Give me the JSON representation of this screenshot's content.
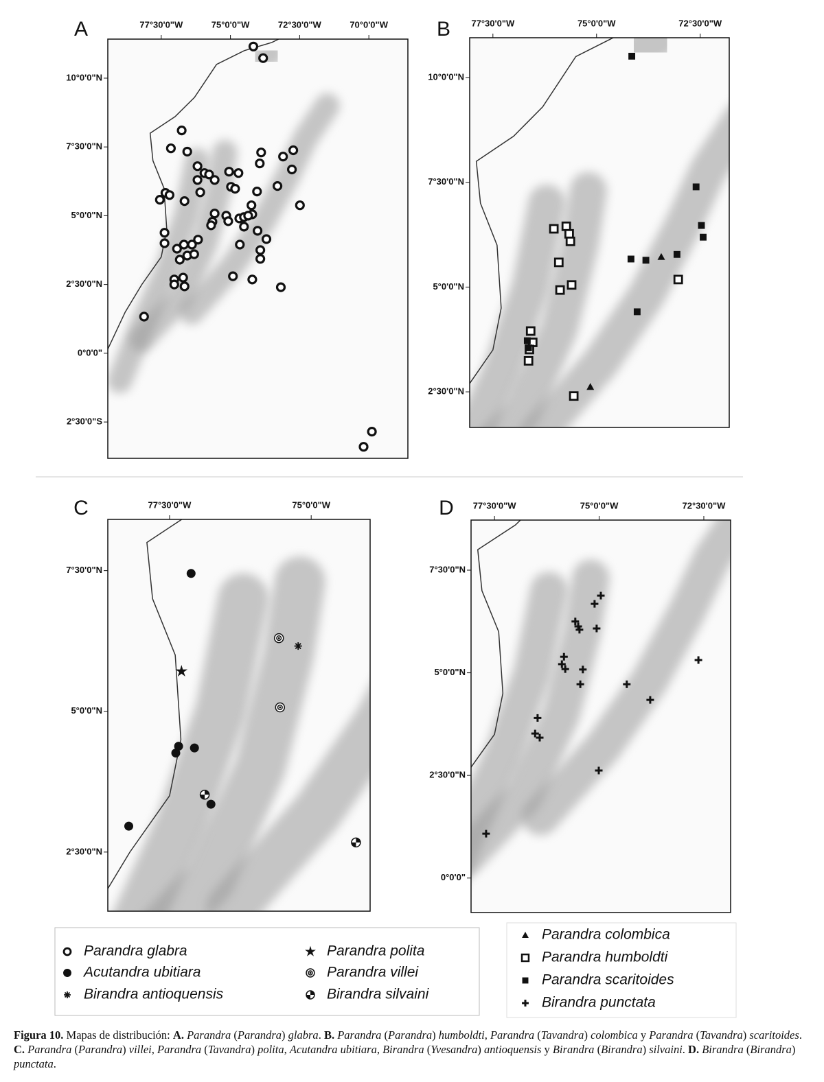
{
  "panels": [
    {
      "label": "A",
      "xlim": [
        -79.43,
        -68.59
      ],
      "ylim": [
        -3.82,
        11.42
      ],
      "xticks": [
        {
          "value": -77.5,
          "label": "77°30'0\"W"
        },
        {
          "value": -75,
          "label": "75°0'0\"W"
        },
        {
          "value": -72.5,
          "label": "72°30'0\"W"
        },
        {
          "value": -70,
          "label": "70°0'0\"W"
        }
      ],
      "yticks": [
        {
          "value": 10,
          "label": "10°0'0\"N"
        },
        {
          "value": 7.5,
          "label": "7°30'0\"N"
        },
        {
          "value": 5,
          "label": "5°0'0\"N"
        },
        {
          "value": 2.5,
          "label": "2°30'0\"N"
        },
        {
          "value": 0,
          "label": "0°0'0\""
        },
        {
          "value": -2.5,
          "label": "2°30'0\"S"
        }
      ]
    },
    {
      "label": "B",
      "xlim": [
        -78.06,
        -71.8
      ],
      "ylim": [
        1.65,
        10.95
      ],
      "xticks": [
        {
          "value": -77.5,
          "label": "77°30'0\"W"
        },
        {
          "value": -75,
          "label": "75°0'0\"W"
        },
        {
          "value": -72.5,
          "label": "72°30'0\"W"
        }
      ],
      "yticks": [
        {
          "value": 10,
          "label": "10°0'0\"N"
        },
        {
          "value": 7.5,
          "label": "7°30'0\"N"
        },
        {
          "value": 5,
          "label": "5°0'0\"N"
        },
        {
          "value": 2.5,
          "label": "2°30'0\"N"
        }
      ]
    },
    {
      "label": "C",
      "xlim": [
        -78.59,
        -73.96
      ],
      "ylim": [
        1.45,
        8.41
      ],
      "xticks": [
        {
          "value": -77.5,
          "label": "77°30'0\"W"
        },
        {
          "value": -75,
          "label": "75°0'0\"W"
        }
      ],
      "yticks": [
        {
          "value": 7.5,
          "label": "7°30'0\"N"
        },
        {
          "value": 5,
          "label": "5°0'0\"N"
        },
        {
          "value": 2.5,
          "label": "2°30'0\"N"
        }
      ]
    },
    {
      "label": "D",
      "xlim": [
        -78.06,
        -71.86
      ],
      "ylim": [
        -0.84,
        8.72
      ],
      "xticks": [
        {
          "value": -77.5,
          "label": "77°30'0\"W"
        },
        {
          "value": -75,
          "label": "75°0'0\"W"
        },
        {
          "value": -72.5,
          "label": "72°30'0\"W"
        }
      ],
      "yticks": [
        {
          "value": 7.5,
          "label": "7°30'0\"N"
        },
        {
          "value": 5,
          "label": "5°0'0\"N"
        },
        {
          "value": 2.5,
          "label": "2°30'0\"N"
        },
        {
          "value": 0,
          "label": "0°0'0\""
        }
      ]
    }
  ],
  "legend": [
    [
      {
        "name": "Parandra glabra",
        "symbol": "open-circle",
        "panel": "A",
        "points": [
          [
            -74.17,
            11.15
          ],
          [
            -73.82,
            10.73
          ],
          [
            -76.76,
            8.1
          ],
          [
            -77.15,
            7.45
          ],
          [
            -76.56,
            7.33
          ],
          [
            -76.19,
            6.8
          ],
          [
            -75.94,
            6.55
          ],
          [
            -75.77,
            6.5
          ],
          [
            -75.57,
            6.3
          ],
          [
            -76.19,
            6.3
          ],
          [
            -76.09,
            5.85
          ],
          [
            -75.05,
            6.6
          ],
          [
            -74.71,
            6.55
          ],
          [
            -74.98,
            6.05
          ],
          [
            -74.83,
            5.98
          ],
          [
            -73.89,
            7.3
          ],
          [
            -73.94,
            6.9
          ],
          [
            -73.1,
            7.15
          ],
          [
            -72.73,
            7.38
          ],
          [
            -72.78,
            6.68
          ],
          [
            -73.3,
            6.08
          ],
          [
            -74.04,
            5.88
          ],
          [
            -77.35,
            5.83
          ],
          [
            -77.2,
            5.75
          ],
          [
            -77.55,
            5.58
          ],
          [
            -76.66,
            5.53
          ],
          [
            -72.49,
            5.38
          ],
          [
            -74.24,
            5.38
          ],
          [
            -74.21,
            5.05
          ],
          [
            -75.57,
            5.08
          ],
          [
            -75.65,
            4.78
          ],
          [
            -75.7,
            4.65
          ],
          [
            -75.15,
            5.0
          ],
          [
            -75.08,
            4.8
          ],
          [
            -74.68,
            4.9
          ],
          [
            -74.51,
            4.95
          ],
          [
            -74.36,
            5.0
          ],
          [
            -74.51,
            4.6
          ],
          [
            -74.02,
            4.45
          ],
          [
            -73.7,
            4.15
          ],
          [
            -77.38,
            4.38
          ],
          [
            -77.38,
            4.0
          ],
          [
            -76.17,
            4.13
          ],
          [
            -76.39,
            3.95
          ],
          [
            -76.68,
            3.95
          ],
          [
            -76.93,
            3.8
          ],
          [
            -76.56,
            3.55
          ],
          [
            -76.31,
            3.6
          ],
          [
            -76.83,
            3.4
          ],
          [
            -74.66,
            3.95
          ],
          [
            -73.92,
            3.75
          ],
          [
            -73.92,
            3.43
          ],
          [
            -74.91,
            2.8
          ],
          [
            -74.21,
            2.68
          ],
          [
            -77.03,
            2.68
          ],
          [
            -76.71,
            2.75
          ],
          [
            -77.03,
            2.5
          ],
          [
            -76.66,
            2.43
          ],
          [
            -73.18,
            2.4
          ],
          [
            -78.12,
            1.33
          ],
          [
            -69.89,
            -2.85
          ],
          [
            -70.19,
            -3.4
          ]
        ]
      },
      {
        "name": "Acutandra ubitiara",
        "symbol": "filled-circle",
        "panel": "C",
        "points": [
          [
            -77.12,
            7.45
          ],
          [
            -77.34,
            4.38
          ],
          [
            -77.39,
            4.26
          ],
          [
            -77.06,
            4.35
          ],
          [
            -76.77,
            3.35
          ],
          [
            -78.22,
            2.96
          ]
        ]
      },
      {
        "name": "Birandra antioquensis",
        "symbol": "asterisk",
        "panel": "C",
        "points": [
          [
            -75.23,
            6.16
          ]
        ]
      },
      {
        "name": "Parandra polita",
        "symbol": "star",
        "panel": "C",
        "points": [
          [
            -77.29,
            5.71
          ]
        ]
      },
      {
        "name": "Parandra villei",
        "symbol": "bullseye",
        "panel": "C",
        "points": [
          [
            -75.57,
            6.3
          ],
          [
            -75.55,
            5.07
          ]
        ]
      },
      {
        "name": "Birandra silvaini",
        "symbol": "quartered",
        "panel": "C",
        "points": [
          [
            -76.88,
            3.52
          ],
          [
            -74.21,
            2.67
          ]
        ]
      }
    ],
    [
      {
        "name": "Parandra colombica",
        "symbol": "triangle",
        "panel": "B",
        "points": [
          [
            -73.44,
            5.72
          ],
          [
            -75.15,
            2.62
          ],
          [
            -75.55,
            2.42
          ]
        ]
      },
      {
        "name": "Parandra humboldti",
        "symbol": "open-square",
        "panel": "B",
        "points": [
          [
            -76.03,
            6.39
          ],
          [
            -75.73,
            6.45
          ],
          [
            -75.66,
            6.27
          ],
          [
            -75.63,
            6.09
          ],
          [
            -75.91,
            5.59
          ],
          [
            -75.6,
            5.05
          ],
          [
            -75.88,
            4.93
          ],
          [
            -76.59,
            3.95
          ],
          [
            -76.54,
            3.68
          ],
          [
            -76.62,
            3.51
          ],
          [
            -76.64,
            3.24
          ],
          [
            -73.03,
            5.18
          ],
          [
            -75.55,
            2.4
          ]
        ]
      },
      {
        "name": "Parandra scaritoides",
        "symbol": "filled-square",
        "panel": "B",
        "points": [
          [
            -74.15,
            10.51
          ],
          [
            -72.6,
            7.39
          ],
          [
            -72.47,
            6.47
          ],
          [
            -72.43,
            6.19
          ],
          [
            -74.17,
            5.67
          ],
          [
            -73.81,
            5.64
          ],
          [
            -73.06,
            5.78
          ],
          [
            -74.02,
            4.41
          ],
          [
            -76.64,
            3.55
          ],
          [
            -76.67,
            3.72
          ]
        ]
      },
      {
        "name": "Birandra punctata",
        "symbol": "cross",
        "panel": "D",
        "points": [
          [
            -74.96,
            6.88
          ],
          [
            -75.11,
            6.68
          ],
          [
            -75.57,
            6.25
          ],
          [
            -75.5,
            6.13
          ],
          [
            -75.47,
            6.05
          ],
          [
            -75.06,
            6.08
          ],
          [
            -75.84,
            5.39
          ],
          [
            -75.89,
            5.21
          ],
          [
            -75.81,
            5.09
          ],
          [
            -75.39,
            5.08
          ],
          [
            -75.45,
            4.72
          ],
          [
            -74.34,
            4.72
          ],
          [
            -73.78,
            4.34
          ],
          [
            -72.63,
            5.31
          ],
          [
            -76.47,
            3.9
          ],
          [
            -76.53,
            3.52
          ],
          [
            -76.42,
            3.42
          ],
          [
            -75.01,
            2.62
          ],
          [
            -77.7,
            1.08
          ]
        ]
      }
    ]
  ],
  "caption": [
    {
      "text": "Figura 10. ",
      "style": "bold"
    },
    {
      "text": "Mapas de distribución: ",
      "style": "normal"
    },
    {
      "text": "A. ",
      "style": "bold"
    },
    {
      "text": "Parandra",
      "style": "italic"
    },
    {
      "text": " (",
      "style": "normal"
    },
    {
      "text": "Parandra",
      "style": "italic"
    },
    {
      "text": ") ",
      "style": "normal"
    },
    {
      "text": "glabra",
      "style": "italic"
    },
    {
      "text": ". ",
      "style": "normal"
    },
    {
      "text": "B. ",
      "style": "bold"
    },
    {
      "text": "Parandra",
      "style": "italic"
    },
    {
      "text": " (",
      "style": "normal"
    },
    {
      "text": "Parandra",
      "style": "italic"
    },
    {
      "text": ") ",
      "style": "normal"
    },
    {
      "text": "humboldti",
      "style": "italic"
    },
    {
      "text": ", ",
      "style": "normal"
    },
    {
      "text": "Parandra",
      "style": "italic"
    },
    {
      "text": " (",
      "style": "normal"
    },
    {
      "text": "Tavandra",
      "style": "italic"
    },
    {
      "text": ") ",
      "style": "normal"
    },
    {
      "text": "colombica",
      "style": "italic"
    },
    {
      "text": " y ",
      "style": "normal"
    },
    {
      "text": "Parandra",
      "style": "italic"
    },
    {
      "text": " (",
      "style": "normal"
    },
    {
      "text": "Tavandra",
      "style": "italic"
    },
    {
      "text": ") ",
      "style": "normal"
    },
    {
      "text": "scaritoides",
      "style": "italic"
    },
    {
      "text": ". ",
      "style": "normal"
    },
    {
      "text": "C. ",
      "style": "bold"
    },
    {
      "text": "Parandra",
      "style": "italic"
    },
    {
      "text": " (",
      "style": "normal"
    },
    {
      "text": "Parandra",
      "style": "italic"
    },
    {
      "text": ") ",
      "style": "normal"
    },
    {
      "text": "villei",
      "style": "italic"
    },
    {
      "text": ", ",
      "style": "normal"
    },
    {
      "text": "Parandra",
      "style": "italic"
    },
    {
      "text": " (",
      "style": "normal"
    },
    {
      "text": "Tavandra",
      "style": "italic"
    },
    {
      "text": ") ",
      "style": "normal"
    },
    {
      "text": "polita",
      "style": "italic"
    },
    {
      "text": ", ",
      "style": "normal"
    },
    {
      "text": "Acutandra ubitiara",
      "style": "italic"
    },
    {
      "text": ", ",
      "style": "normal"
    },
    {
      "text": "Birandra",
      "style": "italic"
    },
    {
      "text": " (",
      "style": "normal"
    },
    {
      "text": "Yvesandra",
      "style": "italic"
    },
    {
      "text": ") ",
      "style": "normal"
    },
    {
      "text": "antioquensis",
      "style": "italic"
    },
    {
      "text": " y ",
      "style": "normal"
    },
    {
      "text": "Birandra",
      "style": "italic"
    },
    {
      "text": " (",
      "style": "normal"
    },
    {
      "text": "Birandra",
      "style": "italic"
    },
    {
      "text": ") ",
      "style": "normal"
    },
    {
      "text": "silvaini",
      "style": "italic"
    },
    {
      "text": ". ",
      "style": "normal"
    },
    {
      "text": "D. ",
      "style": "bold"
    },
    {
      "text": "Birandra",
      "style": "italic"
    },
    {
      "text": " (",
      "style": "normal"
    },
    {
      "text": "Birandra",
      "style": "italic"
    },
    {
      "text": ") ",
      "style": "normal"
    },
    {
      "text": "punctata",
      "style": "italic"
    },
    {
      "text": ".",
      "style": "normal"
    }
  ]
}
